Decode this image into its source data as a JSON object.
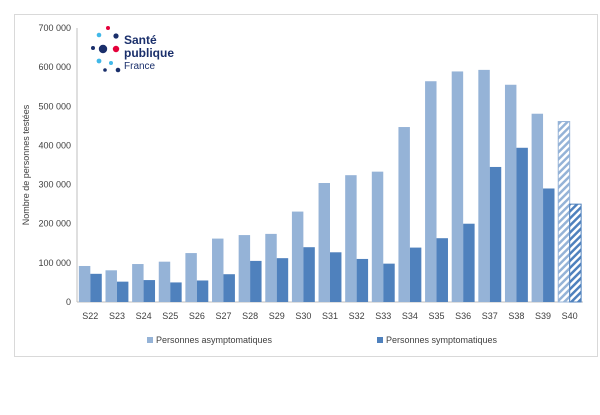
{
  "logo": {
    "line1": "Santé",
    "line2": "publique",
    "line3": "France"
  },
  "chart_data": {
    "type": "bar",
    "categories": [
      "S22",
      "S23",
      "S24",
      "S25",
      "S26",
      "S27",
      "S28",
      "S29",
      "S30",
      "S31",
      "S32",
      "S33",
      "S34",
      "S35",
      "S36",
      "S37",
      "S38",
      "S39",
      "S40"
    ],
    "series": [
      {
        "name": "Personnes asymptomatiques",
        "color": "#95b3d7",
        "values": [
          92000,
          81000,
          97000,
          103000,
          125000,
          162000,
          171000,
          174000,
          231000,
          304000,
          324000,
          333000,
          447000,
          564000,
          589000,
          593000,
          555000,
          481000,
          461000
        ]
      },
      {
        "name": "Personnes symptomatiques",
        "color": "#4f81bd",
        "values": [
          72000,
          52000,
          56000,
          50000,
          55000,
          71000,
          105000,
          112000,
          140000,
          127000,
          110000,
          98000,
          139000,
          163000,
          200000,
          345000,
          394000,
          290000,
          250000
        ]
      }
    ],
    "hatched_categories": [
      "S40"
    ],
    "ylabel": "Nombre de personnes testées",
    "ylim": [
      0,
      700000
    ],
    "yticks": [
      "0",
      "100 000",
      "200 000",
      "300 000",
      "400 000",
      "500 000",
      "600 000",
      "700 000"
    ],
    "ytick_values": [
      0,
      100000,
      200000,
      300000,
      400000,
      500000,
      600000,
      700000
    ],
    "legend_position": "bottom",
    "grid": false
  }
}
